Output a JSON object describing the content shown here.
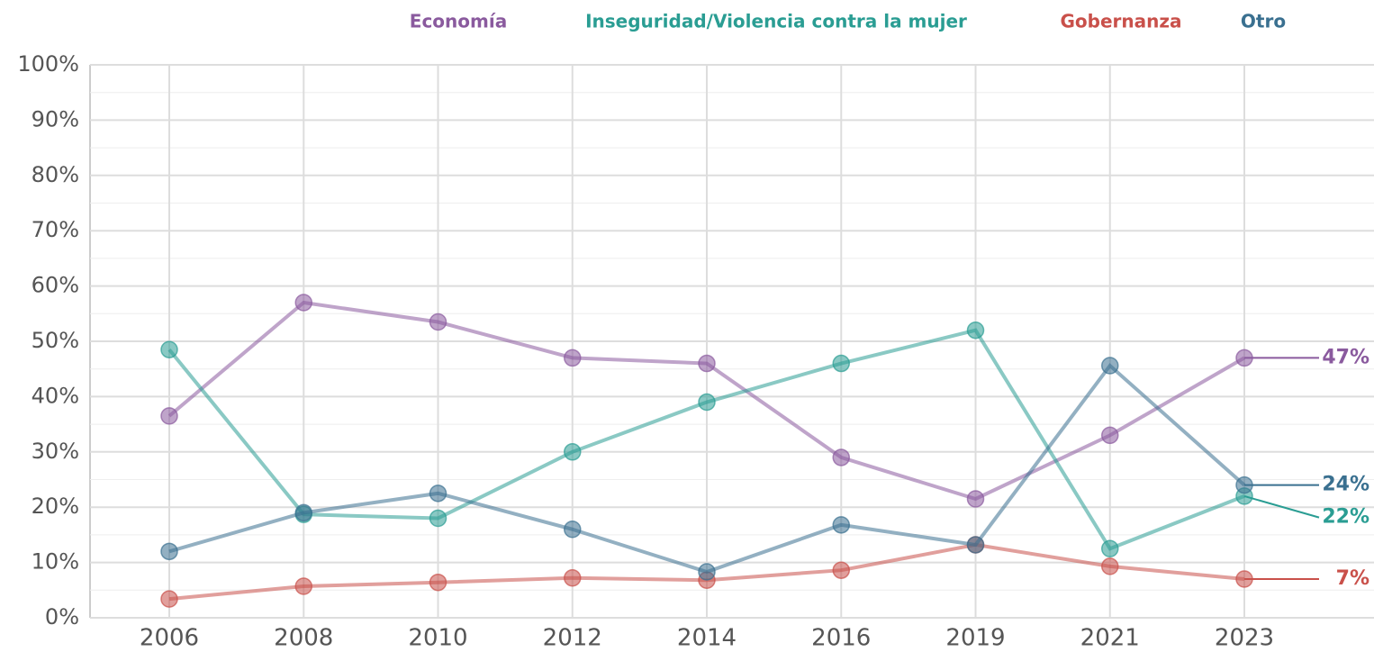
{
  "chart_data": {
    "type": "line",
    "categories": [
      "2006",
      "2008",
      "2010",
      "2012",
      "2014",
      "2016",
      "2019",
      "2021",
      "2023"
    ],
    "series": [
      {
        "name": "Economía",
        "color": "#8a5a9e",
        "values": [
          36.5,
          57,
          53.5,
          47,
          46,
          29,
          21.5,
          33,
          47
        ],
        "value_labels": [
          null,
          null,
          null,
          null,
          null,
          null,
          null,
          null,
          "47%"
        ]
      },
      {
        "name": "Inseguridad/Violencia contra la mujer",
        "color": "#2a9d93",
        "values": [
          48.5,
          18.7,
          18,
          30,
          39,
          46,
          52,
          12.5,
          22
        ],
        "value_labels": [
          null,
          null,
          null,
          null,
          null,
          null,
          null,
          null,
          "22%"
        ]
      },
      {
        "name": "Gobernanza",
        "color": "#c9504a",
        "values": [
          3.4,
          5.7,
          6.4,
          7.2,
          6.8,
          8.6,
          13.2,
          9.3,
          7
        ],
        "value_labels": [
          null,
          null,
          null,
          null,
          null,
          null,
          null,
          null,
          "7%"
        ]
      },
      {
        "name": "Otro",
        "color": "#3a7090",
        "values": [
          12,
          19,
          22.5,
          16,
          8.3,
          16.8,
          13.2,
          45.6,
          24
        ],
        "value_labels": [
          null,
          null,
          null,
          null,
          null,
          null,
          null,
          null,
          "24%"
        ]
      }
    ],
    "ylim": [
      0,
      100
    ],
    "yticks": [
      {
        "value": 0,
        "label": "0%"
      },
      {
        "value": 10,
        "label": "10%"
      },
      {
        "value": 20,
        "label": "20%"
      },
      {
        "value": 30,
        "label": "30%"
      },
      {
        "value": 40,
        "label": "40%"
      },
      {
        "value": 50,
        "label": "50%"
      },
      {
        "value": 60,
        "label": "60%"
      },
      {
        "value": 70,
        "label": "70%"
      },
      {
        "value": 80,
        "label": "80%"
      },
      {
        "value": 90,
        "label": "90%"
      },
      {
        "value": 100,
        "label": "100%"
      }
    ],
    "grid": true
  }
}
